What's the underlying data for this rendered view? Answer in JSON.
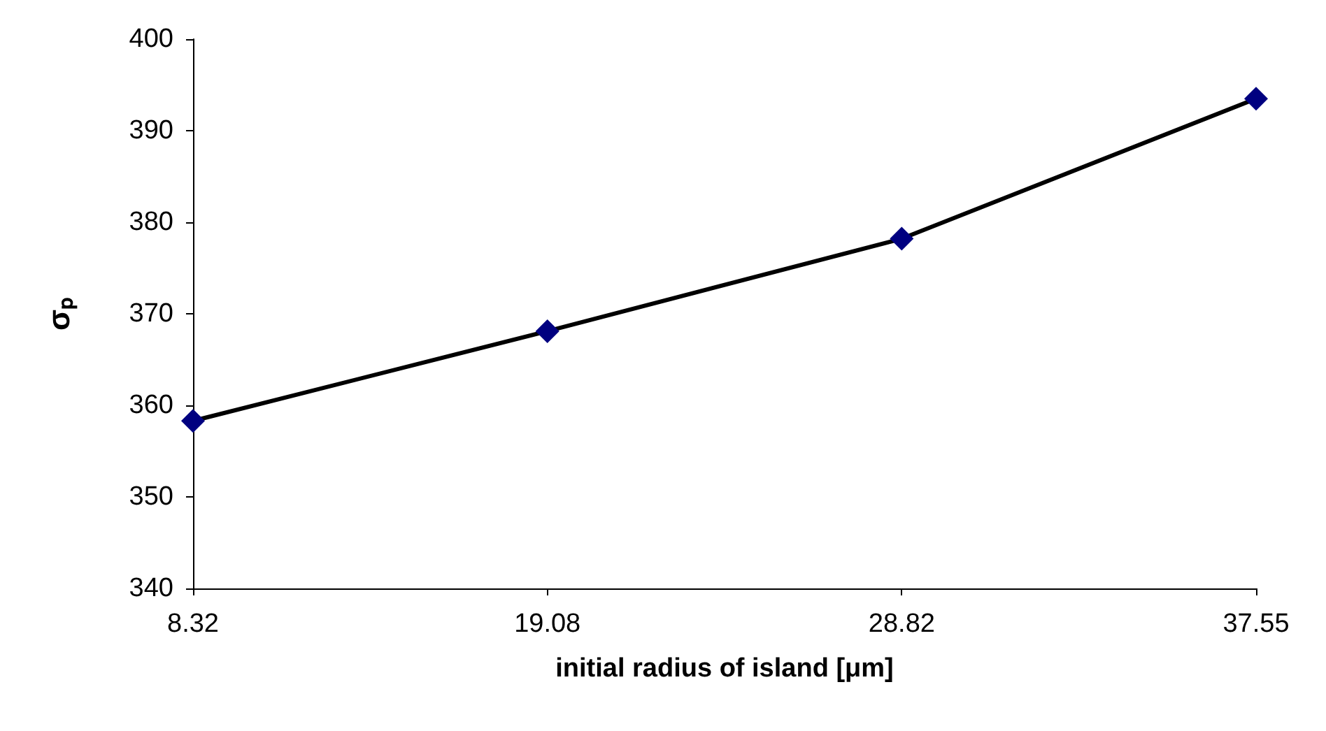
{
  "chart_data": {
    "type": "line",
    "xlabel": "initial radius of island [μm]",
    "ylabel": "σₚ",
    "categories": [
      "8.32",
      "19.08",
      "28.82",
      "37.55"
    ],
    "series": [
      {
        "color": "#000080",
        "values": [
          358.3,
          368.1,
          378.2,
          393.5
        ]
      }
    ],
    "ylim": [
      340,
      400
    ],
    "yticks": [
      340,
      350,
      360,
      370,
      380,
      390,
      400
    ],
    "grid": false,
    "marker": "diamond",
    "line_style": "solid"
  }
}
